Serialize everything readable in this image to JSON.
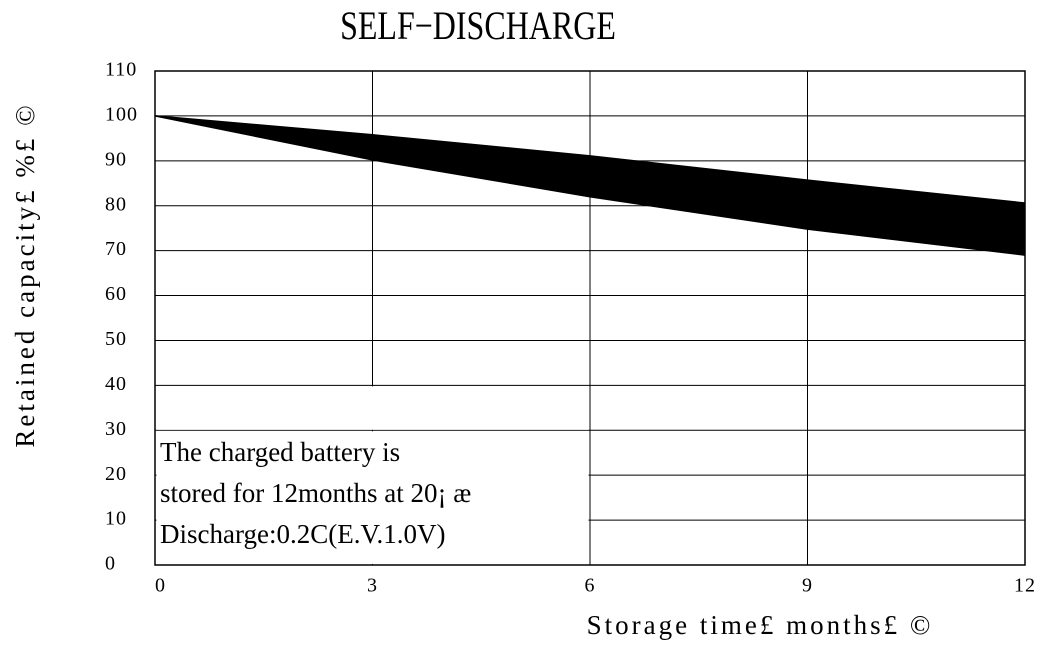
{
  "chart_data": {
    "type": "band",
    "title": "SELF−DISCHARGE",
    "ylabel": "Retained capacity£ %£ ©",
    "xlabel": "Storage time£ months£ ©",
    "annotation": [
      "The charged battery is",
      "stored for 12months at 20¡ æ",
      "Discharge:0.2C(E.V.1.0V)"
    ],
    "x": [
      0,
      3,
      6,
      9,
      12
    ],
    "series": [
      {
        "color": "#000000",
        "values": [
          100,
          95.8,
          91.1,
          85.7,
          80.6
        ]
      },
      {
        "color": "#000000",
        "values": [
          100,
          90.2,
          82,
          74.8,
          69
        ]
      }
    ],
    "xlim": [
      0,
      12
    ],
    "xticks": [
      0,
      3,
      6,
      9,
      12
    ],
    "ylim": [
      0,
      110
    ],
    "yticks": [
      0,
      10,
      20,
      30,
      40,
      50,
      60,
      70,
      80,
      90,
      100,
      110
    ],
    "grid": true
  }
}
